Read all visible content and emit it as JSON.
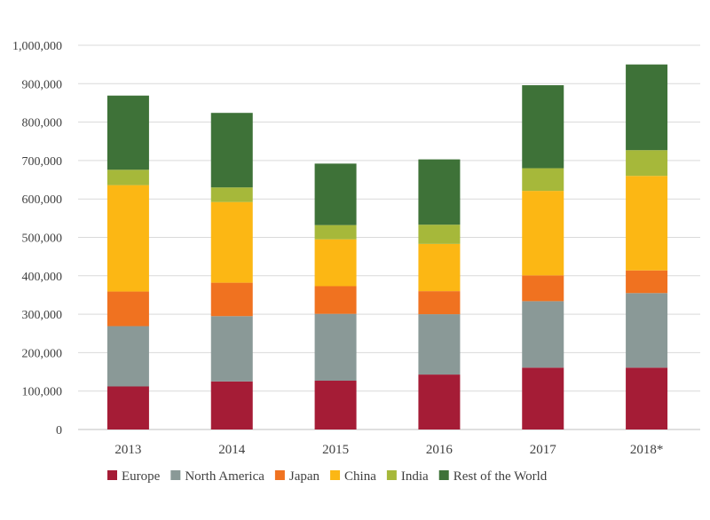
{
  "chart_data": {
    "type": "bar",
    "stacked": true,
    "title": "",
    "xlabel": "",
    "ylabel": "",
    "categories": [
      "2013",
      "2014",
      "2015",
      "2016",
      "2017",
      "2018*"
    ],
    "ylim": [
      0,
      1000000
    ],
    "yticks": [
      "0",
      "100,000",
      "200,000",
      "300,000",
      "400,000",
      "500,000",
      "600,000",
      "700,000",
      "800,000",
      "900,000",
      "1,000,000"
    ],
    "grid": true,
    "legend_position": "bottom",
    "series": [
      {
        "name": "Europe",
        "color": "#A51C36",
        "values": [
          112000,
          125000,
          127000,
          143000,
          161000,
          161000
        ]
      },
      {
        "name": "North America",
        "color": "#8A9997",
        "values": [
          157000,
          170000,
          174000,
          157000,
          173000,
          194000
        ]
      },
      {
        "name": "Japan",
        "color": "#F07220",
        "values": [
          90000,
          87000,
          72000,
          60000,
          67000,
          59000
        ]
      },
      {
        "name": "China",
        "color": "#FCB714",
        "values": [
          277000,
          210000,
          122000,
          123000,
          220000,
          246000
        ]
      },
      {
        "name": "India",
        "color": "#A6B83A",
        "values": [
          40000,
          38000,
          37000,
          50000,
          59000,
          67000
        ]
      },
      {
        "name": "Rest of the World",
        "color": "#3E7238",
        "values": [
          193000,
          194000,
          160000,
          170000,
          216000,
          223000
        ]
      }
    ]
  }
}
